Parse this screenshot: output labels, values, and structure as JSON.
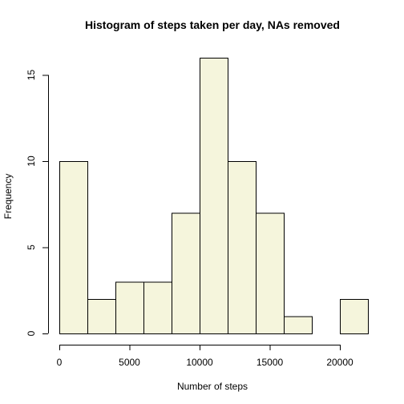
{
  "chart_data": {
    "type": "bar",
    "title": "Histogram of steps taken per day, NAs removed",
    "xlabel": "Number of steps",
    "ylabel": "Frequency",
    "bins": [
      {
        "from": 0,
        "to": 2000,
        "count": 10
      },
      {
        "from": 2000,
        "to": 4000,
        "count": 2
      },
      {
        "from": 4000,
        "to": 6000,
        "count": 3
      },
      {
        "from": 6000,
        "to": 8000,
        "count": 3
      },
      {
        "from": 8000,
        "to": 10000,
        "count": 7
      },
      {
        "from": 10000,
        "to": 12000,
        "count": 16
      },
      {
        "from": 12000,
        "to": 14000,
        "count": 10
      },
      {
        "from": 14000,
        "to": 16000,
        "count": 7
      },
      {
        "from": 16000,
        "to": 18000,
        "count": 1
      },
      {
        "from": 18000,
        "to": 20000,
        "count": 0
      },
      {
        "from": 20000,
        "to": 22000,
        "count": 2
      }
    ],
    "xlim": [
      0,
      22000
    ],
    "ylim": [
      0,
      16
    ],
    "x_ticks": [
      0,
      5000,
      10000,
      15000,
      20000
    ],
    "y_ticks": [
      0,
      5,
      10,
      15
    ],
    "bar_fill": "#f5f5dc",
    "bar_stroke": "#000000",
    "grid": false,
    "legend": "none"
  }
}
